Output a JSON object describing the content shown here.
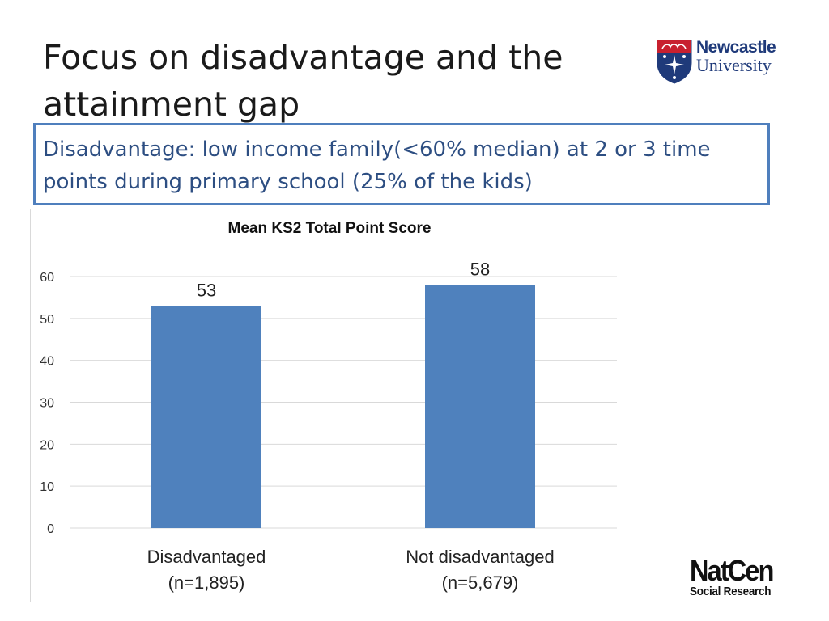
{
  "slide": {
    "title": "Focus on disadvantage and the attainment gap",
    "definition": "Disadvantage: low income family(<60% median) at 2 or 3 time points during primary school (25% of the kids)"
  },
  "logos": {
    "newcastle_line1": "Newcastle",
    "newcastle_line2": "University",
    "natcen_main": "NatCen",
    "natcen_sub": "Social Research"
  },
  "colors": {
    "bar": "#4f81bd",
    "box_border": "#4f7fbd",
    "definition_text": "#2d4e82",
    "gridline": "#d9d9d9"
  },
  "chart_data": {
    "type": "bar",
    "title": "Mean KS2 Total Point Score",
    "categories": [
      [
        "Disadvantaged",
        "(n=1,895)"
      ],
      [
        "Not disadvantaged",
        "(n=5,679)"
      ]
    ],
    "values": [
      53,
      58
    ],
    "data_labels": [
      "53",
      "58"
    ],
    "ylim": [
      0,
      60
    ],
    "yticks": [
      0,
      10,
      20,
      30,
      40,
      50,
      60
    ],
    "grid": true,
    "legend": "none"
  }
}
